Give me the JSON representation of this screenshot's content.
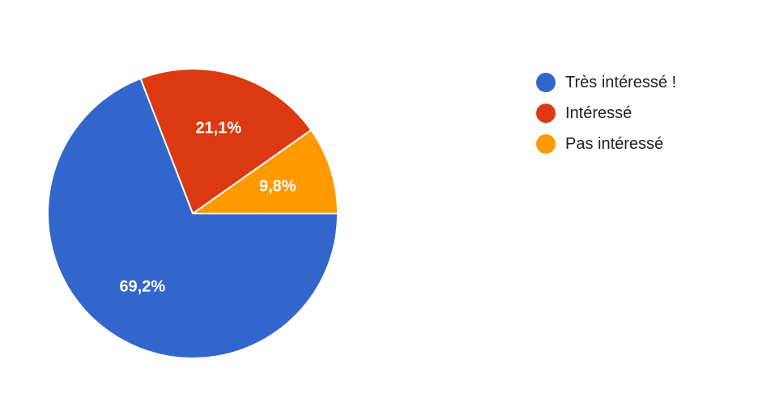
{
  "chart_data": {
    "type": "pie",
    "title": "",
    "categories": [
      "Très intéressé !",
      "Intéressé",
      "Pas intéressé"
    ],
    "values": [
      69.2,
      21.1,
      9.8
    ],
    "value_labels": [
      "69,2%",
      "21,1%",
      "9,8%"
    ],
    "colors": [
      "#3366cc",
      "#dc3912",
      "#ff9900"
    ],
    "legend_position": "right",
    "start": "3 o'clock, counter-clockwise: Pas intéressé, Intéressé, Très intéressé !"
  }
}
